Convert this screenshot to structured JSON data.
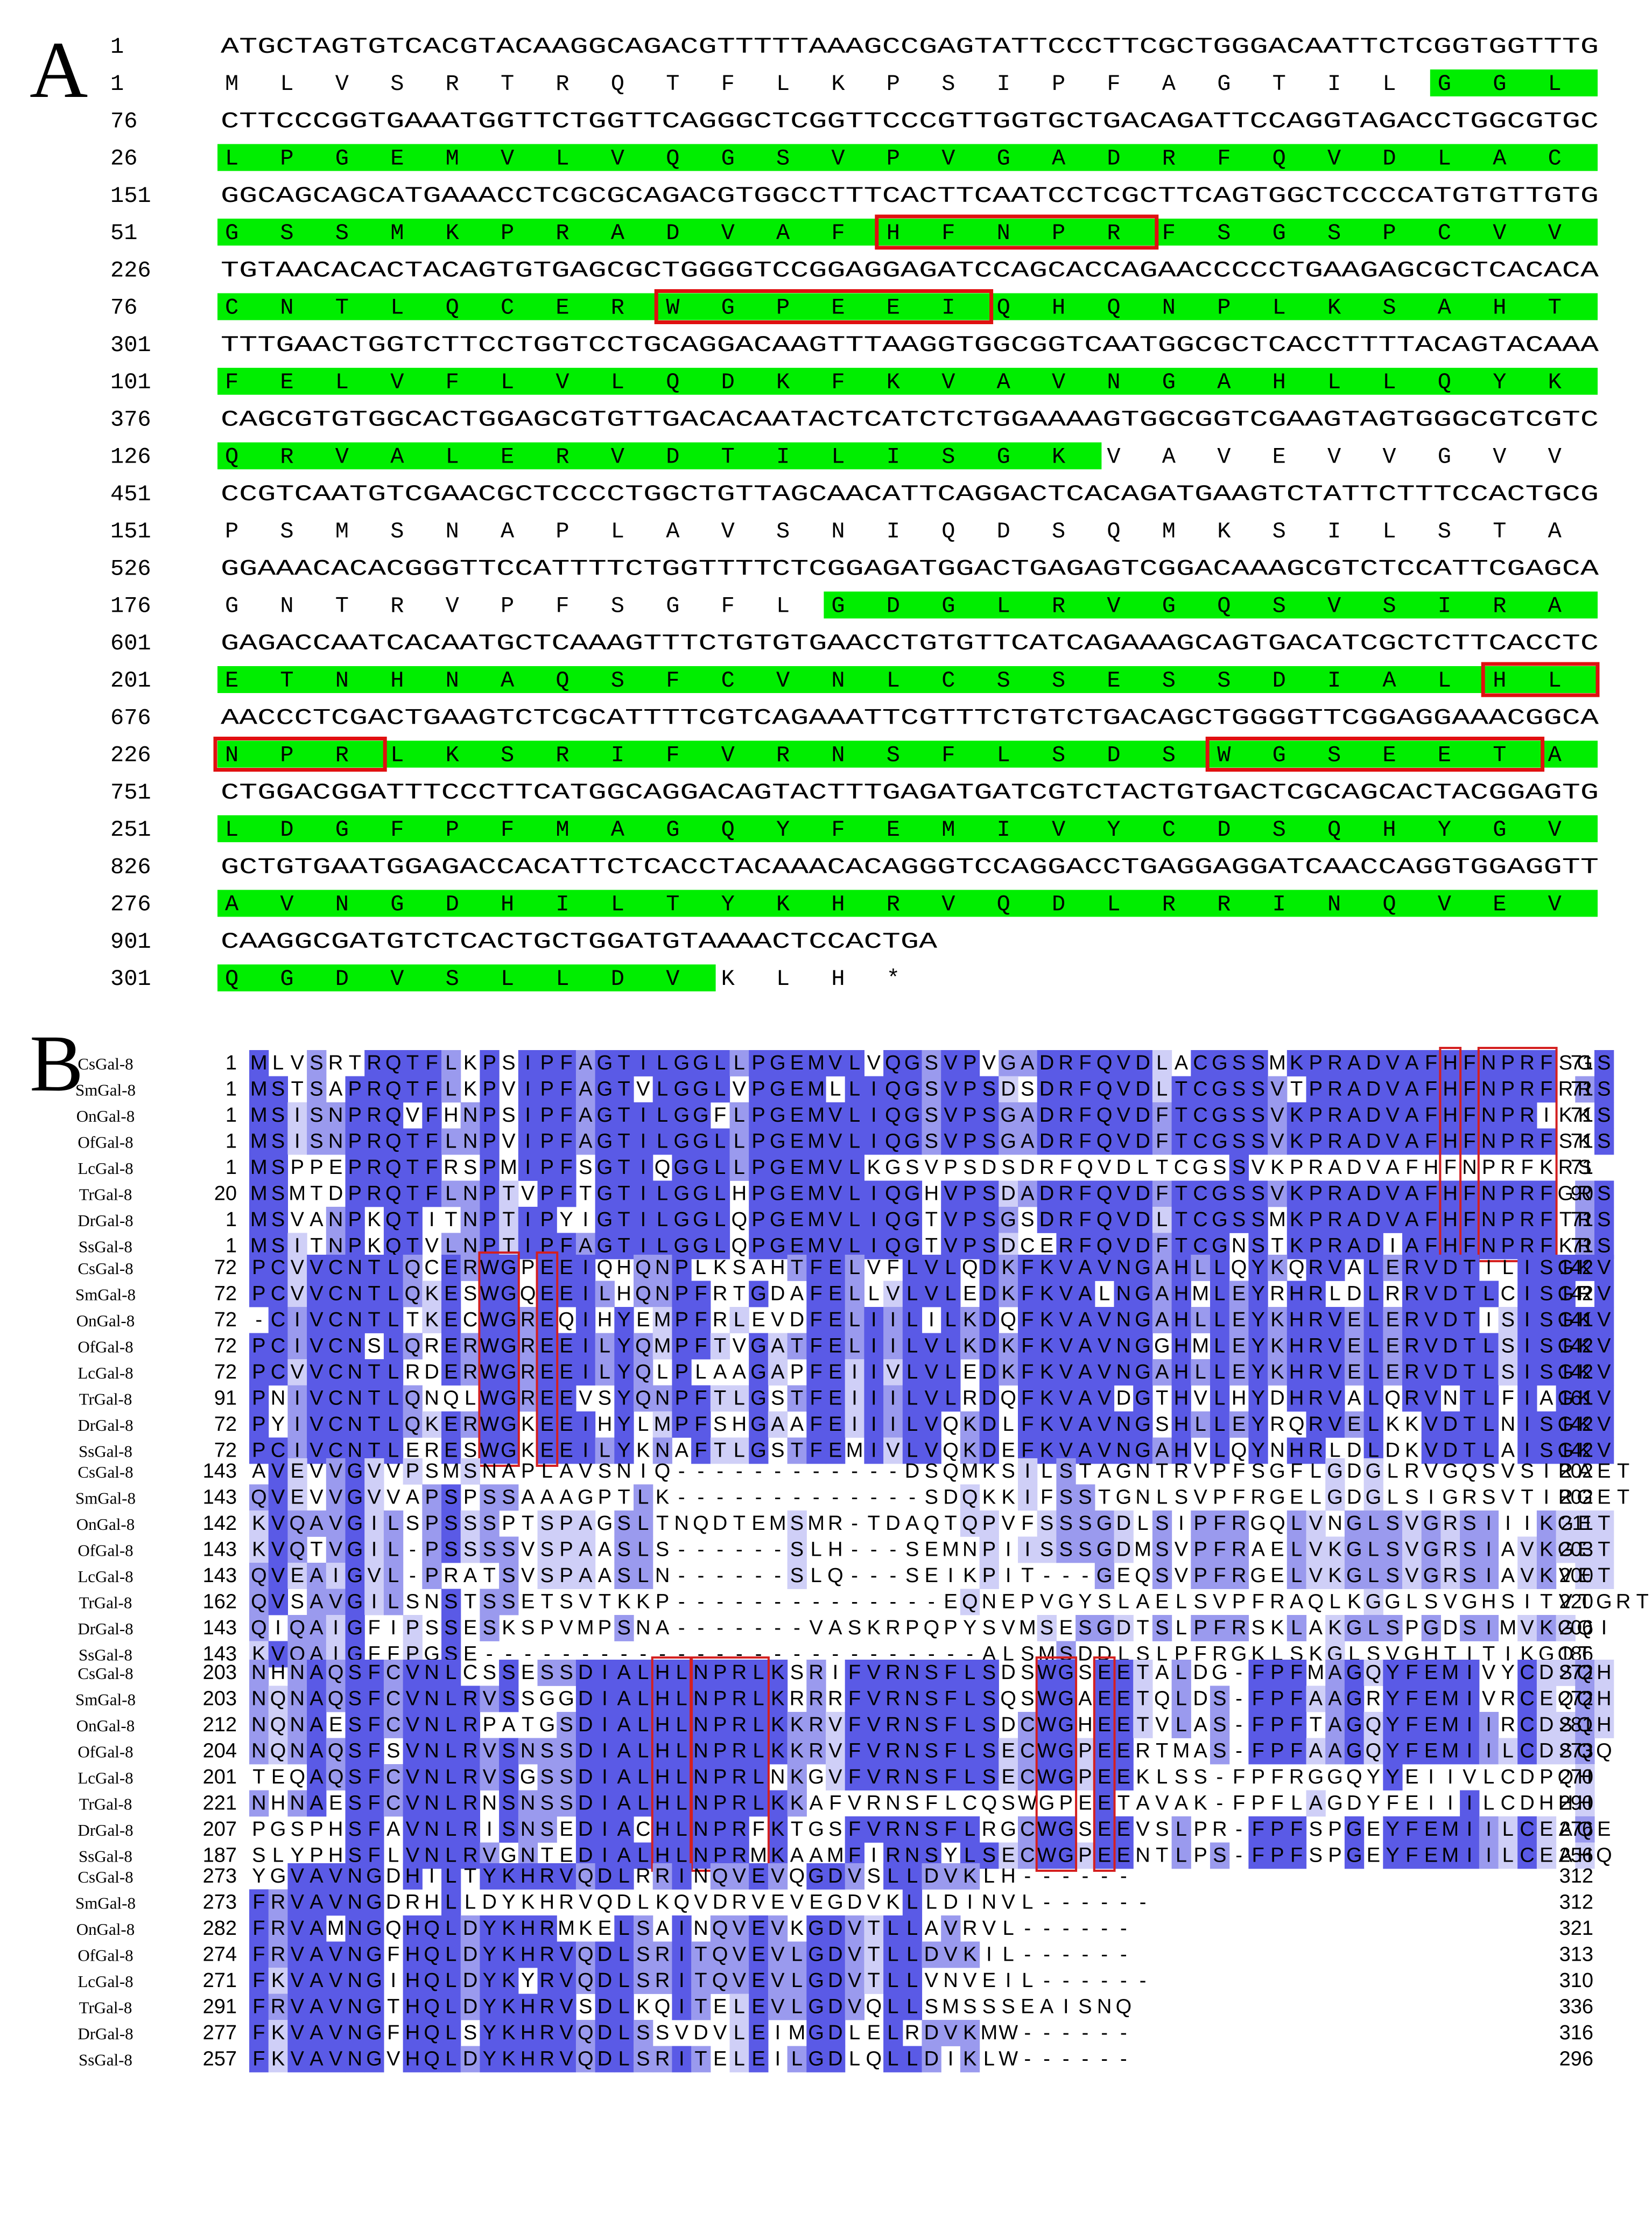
{
  "panel_a": {
    "letter": "A",
    "rows": [
      {
        "nt_num": "1",
        "nt": "ATGCTAGTGTCACGTACAAGGCAGACGTTTTTAAAGCCGAGTATTCCCTTCGCTGGGACAATTCTCGGTGGTTTG",
        "aa_num": "1",
        "aa": "MLVSRTRQTFLKPSIPFAGTILGGL"
      },
      {
        "nt_num": "76",
        "nt": "CTTCCCGGTGAAATGGTTCTGGTTCAGGGCTCGGTTCCCGTTGGTGCTGACAGATTCCAGGTAGACCTGGCGTGC",
        "aa_num": "26",
        "aa": "LPGEMVLVQGSVPVGADRFQVDLAC"
      },
      {
        "nt_num": "151",
        "nt": "GGCAGCAGCATGAAACCTCGCGCAGACGTGGCCTTTCACTTCAATCCTCGCTTCAGTGGCTCCCCATGTGTTGTG",
        "aa_num": "51",
        "aa": "GSSMKPRADVAFHFNPRFSGSPCVV"
      },
      {
        "nt_num": "226",
        "nt": "TGTAACACACTACAGTGTGAGCGCTGGGGTCCGGAGGAGATCCAGCACCAGAACCCCCTGAAGAGCGCTCACACA",
        "aa_num": "76",
        "aa": "CNTLQCERWGPEEIQHQNPLKSAHT"
      },
      {
        "nt_num": "301",
        "nt": "TTTGAACTGGTCTTCCTGGTCCTGCAGGACAAGTTTAAGGTGGCGGTCAATGGCGCTCACCTTTTACAGTACAAA",
        "aa_num": "101",
        "aa": "FELVFLVLQDKFKVAVNGAHLLQYK"
      },
      {
        "nt_num": "376",
        "nt": "CAGCGTGTGGCACTGGAGCGTGTTGACACAATACTCATCTCTGGAAAAGTGGCGGTCGAAGTAGTGGGCGTCGTC",
        "aa_num": "126",
        "aa": "QRVALERVDTILISGKVAVEVVGVV"
      },
      {
        "nt_num": "451",
        "nt": "CCGTCAATGTCGAACGCTCCCCTGGCTGTTAGCAACATTCAGGACTCACAGATGAAGTCTATTCTTTCCACTGCG",
        "aa_num": "151",
        "aa": "PSMSNAPLAVSNIQDSQMKSILSTA"
      },
      {
        "nt_num": "526",
        "nt": "GGAAACACACGGGTTCCATTTTCTGGTTTTCTCGGAGATGGACTGAGAGTCGGACAAAGCGTCTCCATTCGAGCA",
        "aa_num": "176",
        "aa": "GNTRVPFSGFLGDGLRVGQSVSIRA"
      },
      {
        "nt_num": "601",
        "nt": "GAGACCAATCACAATGCTCAAAGTTTCTGTGTGAACCTGTGTTCATCAGAAAGCAGTGACATCGCTCTTCACCTC",
        "aa_num": "201",
        "aa": "ETNHNAQSFCVNLCSSESSDIALHL"
      },
      {
        "nt_num": "676",
        "nt": "AACCCTCGACTGAAGTCTCGCATTTTCGTCAGAAATTCGTTTCTGTCTGACAGCTGGGGTTCGGAGGAAACGGCA",
        "aa_num": "226",
        "aa": "NPRLKSRIFVRNSFLSDSWGSEETA"
      },
      {
        "nt_num": "751",
        "nt": "CTGGACGGATTTCCCTTCATGGCAGGACAGTACTTTGAGATGATCGTCTACTGTGACTCGCAGCACTACGGAGTG",
        "aa_num": "251",
        "aa": "LDGFPFMAGQYFEMIVYCDSQHYGV"
      },
      {
        "nt_num": "826",
        "nt": "GCTGTGAATGGAGACCACATTCTCACCTACAAACACAGGGTCCAGGACCTGAGGAGGATCAACCAGGTGGAGGTT",
        "aa_num": "276",
        "aa": "AVNGDHILTYKHRVQDLRRINQVEV"
      },
      {
        "nt_num": "901",
        "nt": "CAAGGCGATGTCTCACTGCTGGATGTAAAACTCCACTGA",
        "aa_num": "301",
        "aa": "QGDVSLLDVKLH*"
      }
    ]
  },
  "panel_b": {
    "letter": "B",
    "species": [
      "CsGal-8",
      "SmGal-8",
      "OnGal-8",
      "OfGal-8",
      "LcGal-8",
      "TrGal-8",
      "DrGal-8",
      "SsGal-8"
    ],
    "blocks": [
      {
        "start": [
          "1",
          "1",
          "1",
          "1",
          "1",
          "20",
          "1",
          "1"
        ],
        "end": [
          "71",
          "71",
          "71",
          "71",
          "71",
          "90",
          "71",
          "71"
        ],
        "seqs": [
          "MLVSRTRQTFLKPSIPFAGTILGGLLPGEMVLVQGSVPVGADRFQVDLACGSSMKPRADVAFHFNPRFSGS",
          "MSTSAPRQTFLKPVIPFAGTVLGGLVPGEMLLIQGSVPSDSDRFQVDLTCGSSVTPRADVAFHFNPRFRRS",
          "MSISNPRQVFHNPSIPFAGTILGGFLPGEMVLIQGSVPSGADRFQVDFTCGSSVKPRADVAFHFNPRIKKS",
          "MSISNPRQTFLNPVIPFAGTILGGLLPGEMVLIQGSVPSGADRFQVDFTCGSSVKPRADVAFHFNPRFSKS",
          "MSPPEPRQTFRSPMIPFSGTIQGGLLPGEMVLKGSVPSDSDRFQVDLTCGSSVKPRADVAFHFNPRFKRS",
          "MSMTDPRQTFLNPTVPFTGTILGGLHPGEMVLIQGHVPSDADRFQVDFTCGSSVKPRADVAFHFNPRFGRS",
          "MSVANPKQTITNPTIPYIGTILGGLQPGEMVLIQGTVPSGSDRFQVDLTCGSSMKPRADVAFHFNPRFTRS",
          "MSITNPKQTVLNPTIPFAGTILGGLQPGEMVLIQGTVPSDCERFQVDFTCGNSTKPRADIAFHFNPRFKRS"
        ]
      },
      {
        "start": [
          "72",
          "72",
          "72",
          "72",
          "72",
          "91",
          "72",
          "72"
        ],
        "end": [
          "142",
          "142",
          "141",
          "142",
          "142",
          "161",
          "142",
          "142"
        ],
        "seqs": [
          "PCVVCNTLQCERWGPEEIQHQNPLKSAHTFELVFLVLQDKFKVAVNGAHLLQYKQRVALERVDTILISGKV",
          "PCVVCNTLQKESWGQEEILHQNPFRTGDAFELLVLVLEDKFKVALNGAHMLEYRHRLDLRRVDTLCISGRV",
          "-CIVCNTLTKECWGREQIHYEMPFRLEVDFELIILILKDQFKVAVNGAHLLEYKHRVELERVDTISISGKV",
          "PCIVCNSLQRERWGREEILYQMPFTVGATFELIILVLKDKFKVAVNGGHMLEYKHRVELERVDTLSISGKV",
          "PCVVCNTLRDERWGREEILYQLPLAAGAPFEIIVLVLEDKFKVAVNGAHLLEYKHRVELERVDTLSISGKV",
          "PNIVCNTLQNQLWGREEVSYQNPFTLGSTFEIIILVLRDQFKVAVDGTHVLHYDHRVALQRVNTLFIAGKV",
          "PYIVCNTLQKERWGKEEIHYLMPFSHGAAFEIIILVQKDLFKVAVNGSHLLEYRQRVELKKVDTLNISGKV",
          "PCIVCNTLERESWGKEEILYKNAFTLGSTFEMIVLVQKDEFKVAVNGAHVLQYNHRLDLDKVDTLAISGKV"
        ]
      },
      {
        "start": [
          "143",
          "143",
          "142",
          "143",
          "143",
          "162",
          "143",
          "143"
        ],
        "end": [
          "202",
          "202",
          "211",
          "203",
          "200",
          "220",
          "206",
          "186"
        ],
        "seqs": [
          "AVEVVGVVPSMSNAPLAVSNIQ------------DSQMKSILSTAGNTRVPFSGFLGDGLRVGQSVSIRAET",
          "QVEVVGVVAPSPSSAAAGPTLK-------------SDQKKIFSSTGNLSVPFRGELGDGLSIGRSVTIRGET",
          "KVQAVGILSPSSSPTSPAGSLTNQDTEMSMR-TDAQTQPVFSSSGDLSIPFRGQLVNGLSVGRSIIIKGET",
          "KVQTVGIL-PSSSSVSPAASLS------SLH---SEMNPIISSSGDMSVPFRAELVKGLSVGRSIAVKGET",
          "QVEAIGVL-PRATSVSPAASLN------SLQ---SEIKPIT---GEQSVPFRGELVKGLSVGRSIAVKVET",
          "QVSAVGILSNSTSSETSVTKKP--------------EQNEPVGYSLAELSVPFRAQLKGGLSVGHSITVTGRT",
          "QIQAIGFIPSSESKSPVMPSNA-------VASKRPQPYSVMSESGDTSLPFRSKLAKGLSPGDSIMVKGQI",
          "KVQAIGFFPGSE--------------------------ALSMSDDLSLPFRGKLSKGLSVGHTITIKGQT"
        ]
      },
      {
        "start": [
          "203",
          "203",
          "212",
          "204",
          "201",
          "221",
          "207",
          "187"
        ],
        "end": [
          "272",
          "272",
          "281",
          "273",
          "270",
          "290",
          "276",
          "256"
        ],
        "seqs": [
          "NHNAQSFCVNLCSSESSDIALHLNPRLKSRIFVRNSFLSDSWGSEETALDG-FPFMAGQYFEMIVYCDSQH",
          "NQNAQSFCVNLRVSSGGDIALHLNPRLKRRRFVRNSFLSQSWGAEETQLDS-FPFAAGRYFEMIVRCEQQH",
          "NQNAESFCVNLRPATGSDIALHLNPRLKKRVFVRNSFLSDCWGHEETVLAS-FPFTAGQYFEMIIRCDSQH",
          "NQNAQSFSVNLRVSNSSDIALHLNPRLKKRVFVRNSFLSECWGPEERTMAS-FPFAAGQYFEMIILCDSQQ",
          "TEQAQSFCVNLRVSGSSDIALHLNPRLNKGVFVRNSFLSECWGPEEKLSS-FPFRGGQYYEIIVLCDPQH",
          "NHNAESFCVNLRNSNSSDIALHLNPRLKKAFVRNSFLCQSWGPEETAVAK-FPFLAGDYFEIIILCDHHH",
          "PGSPHSFAVNLRISNSEDIACHLNPRFKTGSFVRNSFLRGCWGSEEVSLPR-FPFSPGEYFEMIILCEAQE",
          "SLYPHSFLVNLRVGNTEDIALHLNPRMKAAMFIRNSYLSECWGPEENTLPS-FPFSPGEYFEMIILCEAHQ"
        ]
      },
      {
        "start": [
          "273",
          "273",
          "282",
          "274",
          "271",
          "291",
          "277",
          "257"
        ],
        "end": [
          "312",
          "312",
          "321",
          "313",
          "310",
          "336",
          "316",
          "296"
        ],
        "seqs": [
          "YGVAVNGDHILTYKHRVQDLRRINQVEVQGDVSLLDVKLH------",
          "FRVAVNGDRHLLDYKHRVQDLKQVDRVEVEGDVKLLDINVL------",
          "FRVAMNGQHQLDYKHRMKELSAINQVEVKGDVTLLAVRVL------",
          "FRVAVNGFHQLDYKHRVQDLSRITQVEVLGDVTLLDVKIL------",
          "FKVAVNGIHQLDYKYRVQDLSRITQVEVLGDVTLLVNVEIL------",
          "FRVAVNGTHQLDYKHRVSDLKQITELEVLGDVQLLSMSSSEAISNQ",
          "FKVAVNGFHQLSYKHRVQDLSSVDVLEIMGDLELRDVKMW------",
          "FKVAVNGVHQLDYKHRVQDLSRITELEILGDLQLLDIKLW------"
        ]
      }
    ]
  }
}
